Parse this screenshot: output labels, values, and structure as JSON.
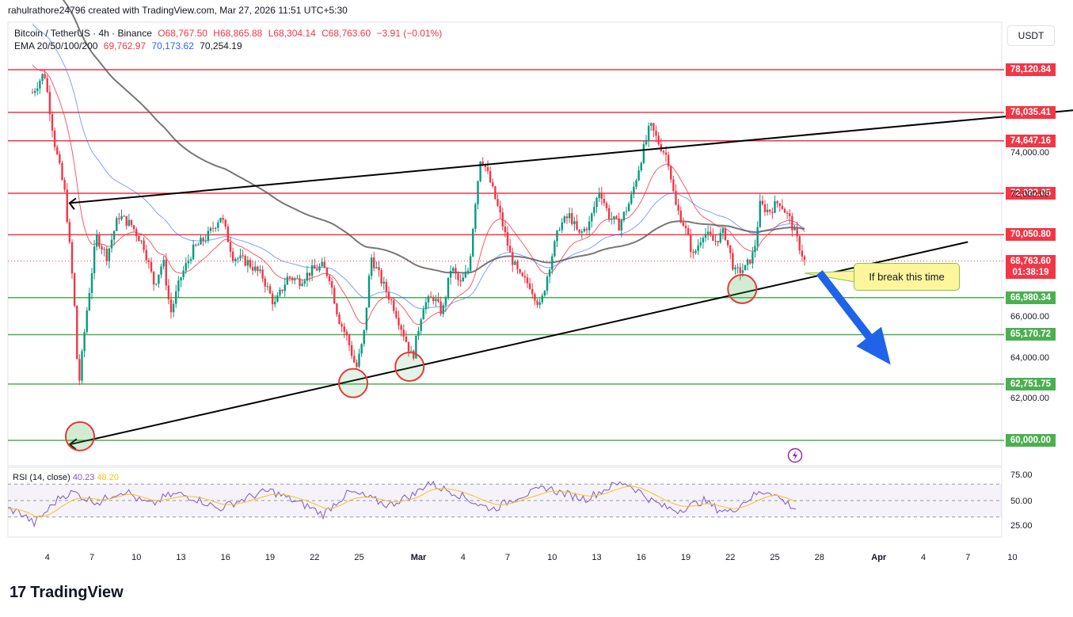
{
  "header": {
    "author_line": "rahulrathore24796 created with TradingView.com, Mar 27, 2026 11:51 UTC+5:30"
  },
  "legend": {
    "symbol": "Bitcoin / TetherUS · 4h · Binance",
    "open": "O68,767.50",
    "high": "H68,865.88",
    "low": "L68,304.14",
    "close": "C68,763.60",
    "change": "−3.91 (−0.01%)",
    "ema_label": "EMA 20/50/100/200",
    "ema20": "69,762.97",
    "ema50": "70,173.62",
    "ema200": "70,254.19"
  },
  "currency_button": "USDT",
  "callout": "If break this time",
  "current_price": {
    "value": "68,763.60",
    "countdown": "01:38:19"
  },
  "rsi": {
    "label": "RSI (14, close)",
    "rsi_value": "40.23",
    "ma_value": "48.20",
    "ticks": [
      "75.00",
      "50.00",
      "25.00"
    ]
  },
  "brand": {
    "mark": "17",
    "name": "TradingView"
  },
  "colors": {
    "red": "#f23645",
    "green": "#4caf50",
    "ema100": "#2962ff",
    "ema200": "#131722",
    "rsi": "#7e57c2",
    "rsi_ma": "#f5c518"
  },
  "chart_data": {
    "type": "candlestick",
    "symbol": "BTCUSDT",
    "timeframe": "4h",
    "x_ticks": [
      "4",
      "7",
      "10",
      "13",
      "16",
      "19",
      "22",
      "25",
      "Mar",
      "4",
      "7",
      "10",
      "13",
      "16",
      "19",
      "22",
      "25",
      "28",
      "Apr",
      "4",
      "7",
      "10"
    ],
    "y_ticks": [
      "74,000.00",
      "72,000.00",
      "66,000.00",
      "64,000.00",
      "62,000.00"
    ],
    "ylim": [
      59000,
      79500
    ],
    "resistance_levels": [
      {
        "price": 78120.84,
        "label": "78,120.84"
      },
      {
        "price": 76035.41,
        "label": "76,035.41"
      },
      {
        "price": 74647.16,
        "label": "74,647.16"
      },
      {
        "price": 72082.05,
        "label": "72,082.05"
      },
      {
        "price": 70050.8,
        "label": "70,050.80"
      }
    ],
    "support_levels": [
      {
        "price": 66980.34,
        "label": "66,980.34"
      },
      {
        "price": 65170.72,
        "label": "65,170.72"
      },
      {
        "price": 62751.75,
        "label": "62,751.75"
      },
      {
        "price": 60000.0,
        "label": "60,000.00"
      }
    ],
    "price_path": [
      {
        "d": 3.0,
        "p": 77000
      },
      {
        "d": 3.8,
        "p": 78000
      },
      {
        "d": 4.5,
        "p": 74500
      },
      {
        "d": 5.2,
        "p": 72000
      },
      {
        "d": 5.8,
        "p": 67000
      },
      {
        "d": 6.1,
        "p": 62500
      },
      {
        "d": 6.6,
        "p": 66000
      },
      {
        "d": 7.3,
        "p": 70000
      },
      {
        "d": 8.0,
        "p": 69000
      },
      {
        "d": 8.8,
        "p": 71000
      },
      {
        "d": 9.7,
        "p": 70500
      },
      {
        "d": 10.5,
        "p": 69500
      },
      {
        "d": 11.2,
        "p": 67600
      },
      {
        "d": 11.8,
        "p": 68800
      },
      {
        "d": 12.3,
        "p": 66200
      },
      {
        "d": 13.0,
        "p": 68000
      },
      {
        "d": 13.8,
        "p": 69300
      },
      {
        "d": 14.8,
        "p": 70000
      },
      {
        "d": 15.7,
        "p": 71000
      },
      {
        "d": 16.5,
        "p": 69000
      },
      {
        "d": 17.5,
        "p": 68700
      },
      {
        "d": 18.5,
        "p": 68000
      },
      {
        "d": 19.3,
        "p": 66600
      },
      {
        "d": 20.2,
        "p": 68000
      },
      {
        "d": 21.0,
        "p": 67800
      },
      {
        "d": 21.8,
        "p": 68300
      },
      {
        "d": 22.5,
        "p": 68500
      },
      {
        "d": 23.0,
        "p": 68000
      },
      {
        "d": 23.6,
        "p": 66000
      },
      {
        "d": 24.2,
        "p": 65000
      },
      {
        "d": 24.8,
        "p": 63500
      },
      {
        "d": 25.3,
        "p": 65000
      },
      {
        "d": 25.8,
        "p": 69000
      },
      {
        "d": 26.5,
        "p": 67800
      },
      {
        "d": 27.3,
        "p": 66600
      },
      {
        "d": 28.0,
        "p": 65200
      },
      {
        "d": 28.6,
        "p": 64000
      },
      {
        "d": 29.3,
        "p": 66600
      },
      {
        "d": 30.0,
        "p": 67000
      },
      {
        "d": 30.6,
        "p": 66200
      },
      {
        "d": 31.2,
        "p": 68500
      },
      {
        "d": 31.8,
        "p": 67600
      },
      {
        "d": 32.4,
        "p": 68400
      },
      {
        "d": 32.8,
        "p": 71500
      },
      {
        "d": 33.2,
        "p": 74000
      },
      {
        "d": 33.8,
        "p": 72700
      },
      {
        "d": 34.5,
        "p": 71000
      },
      {
        "d": 35.2,
        "p": 69000
      },
      {
        "d": 35.8,
        "p": 68000
      },
      {
        "d": 36.5,
        "p": 67600
      },
      {
        "d": 37.2,
        "p": 66500
      },
      {
        "d": 37.8,
        "p": 68500
      },
      {
        "d": 38.5,
        "p": 70500
      },
      {
        "d": 39.2,
        "p": 71000
      },
      {
        "d": 39.8,
        "p": 70000
      },
      {
        "d": 40.5,
        "p": 70600
      },
      {
        "d": 41.2,
        "p": 72300
      },
      {
        "d": 41.8,
        "p": 71000
      },
      {
        "d": 42.5,
        "p": 70500
      },
      {
        "d": 43.3,
        "p": 71800
      },
      {
        "d": 44.0,
        "p": 73800
      },
      {
        "d": 44.6,
        "p": 75400
      },
      {
        "d": 45.2,
        "p": 74500
      },
      {
        "d": 45.8,
        "p": 73800
      },
      {
        "d": 46.3,
        "p": 71500
      },
      {
        "d": 46.9,
        "p": 70500
      },
      {
        "d": 47.5,
        "p": 69000
      },
      {
        "d": 48.2,
        "p": 70200
      },
      {
        "d": 48.9,
        "p": 69700
      },
      {
        "d": 49.6,
        "p": 70200
      },
      {
        "d": 50.3,
        "p": 68200
      },
      {
        "d": 51.0,
        "p": 68400
      },
      {
        "d": 51.6,
        "p": 69200
      },
      {
        "d": 52.0,
        "p": 71500
      },
      {
        "d": 52.6,
        "p": 71200
      },
      {
        "d": 53.3,
        "p": 71700
      },
      {
        "d": 54.0,
        "p": 70800
      },
      {
        "d": 54.5,
        "p": 69800
      },
      {
        "d": 55.0,
        "p": 68760
      }
    ],
    "trendlines": [
      {
        "name": "upper",
        "from": {
          "d": 5.5,
          "p": 71600
        },
        "to": {
          "d": 74.0,
          "p": 76200
        }
      },
      {
        "name": "lower",
        "from": {
          "d": 5.5,
          "p": 59800
        },
        "to": {
          "d": 66.0,
          "p": 69700
        }
      }
    ],
    "highlighted_lows": [
      {
        "d": 6.2,
        "p": 60200,
        "fill": "green"
      },
      {
        "d": 24.6,
        "p": 62800,
        "fill": "red"
      },
      {
        "d": 28.4,
        "p": 63600,
        "fill": "red"
      },
      {
        "d": 50.8,
        "p": 67400,
        "fill": "green"
      }
    ],
    "ema_lines": [
      {
        "name": "EMA 20",
        "value": 69762.97,
        "color": "#f23645"
      },
      {
        "name": "EMA 50",
        "value": 70173.62,
        "color": "#2962ff"
      },
      {
        "name": "EMA 200",
        "value": 70254.19,
        "color": "#131722"
      }
    ],
    "arrow_forecast": {
      "from": {
        "d": 56.0,
        "p": 68200
      },
      "to": {
        "d": 60.8,
        "p": 63700
      }
    },
    "rsi_path": [
      40,
      35,
      22,
      38,
      55,
      60,
      52,
      48,
      58,
      62,
      50,
      45,
      55,
      58,
      54,
      48,
      40,
      46,
      52,
      58,
      62,
      55,
      48,
      42,
      33,
      48,
      60,
      56,
      50,
      44,
      52,
      58,
      72,
      65,
      60,
      52,
      44,
      40,
      48,
      56,
      60,
      66,
      60,
      56,
      52,
      60,
      68,
      72,
      62,
      50,
      42,
      38,
      44,
      50,
      40,
      36,
      48,
      58,
      62,
      50,
      40
    ]
  }
}
